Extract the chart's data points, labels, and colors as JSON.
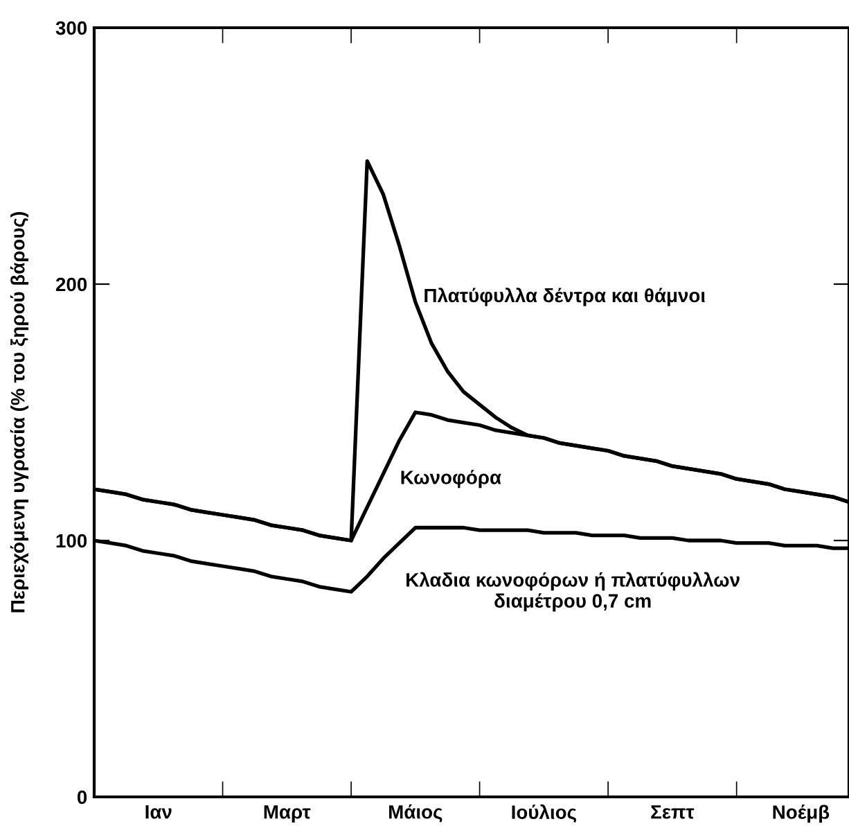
{
  "chart_data": {
    "type": "line",
    "ylabel": "Περιεχόμενη υγρασία (% του ξηρού βάρους)",
    "categories": [
      null,
      null,
      null,
      null,
      "Ιαν",
      null,
      null,
      null,
      null,
      null,
      null,
      null,
      "Μαρτ",
      null,
      null,
      null,
      null,
      null,
      null,
      null,
      "Μάιος",
      null,
      null,
      null,
      null,
      null,
      null,
      null,
      "Ιούλιος",
      null,
      null,
      null,
      null,
      null,
      null,
      null,
      "Σεπτ",
      null,
      null,
      null,
      null,
      null,
      null,
      null,
      "Νοέμβ",
      null,
      null,
      null
    ],
    "ylim": [
      0,
      300
    ],
    "yticks": [
      0,
      100,
      200,
      300
    ],
    "grid": false,
    "marker": "none",
    "line_style": "solid",
    "series": [
      {
        "name": "Πλατύφυλλα δέντρα και θάμνοι",
        "color": "#000000",
        "values": [
          120,
          119,
          118,
          116,
          115,
          114,
          112,
          111,
          110,
          109,
          108,
          106,
          105,
          104,
          102,
          101,
          100,
          248,
          235,
          215,
          193,
          177,
          166,
          158,
          153,
          148,
          144,
          141,
          140,
          138,
          137,
          136,
          135,
          133,
          132,
          131,
          129,
          128,
          127,
          126,
          124,
          123,
          122,
          120,
          119,
          118,
          117,
          115
        ]
      },
      {
        "name": "Κωνοφόρα",
        "color": "#000000",
        "values": [
          120,
          119,
          118,
          116,
          115,
          114,
          112,
          111,
          110,
          109,
          108,
          106,
          105,
          104,
          102,
          101,
          100,
          113,
          126,
          139,
          150,
          149,
          147,
          146,
          145,
          143,
          142,
          141,
          140,
          138,
          137,
          136,
          135,
          133,
          132,
          131,
          129,
          128,
          127,
          126,
          124,
          123,
          122,
          120,
          119,
          118,
          117,
          115
        ]
      },
      {
        "name": "Κλαδια κωνοφόρων ή πλατύφυλλων\nδιαμέτρου 0,7 cm",
        "color": "#000000",
        "values": [
          100,
          99,
          98,
          96,
          95,
          94,
          92,
          91,
          90,
          89,
          88,
          86,
          85,
          84,
          82,
          81,
          80,
          86,
          93,
          99,
          105,
          105,
          105,
          105,
          104,
          104,
          104,
          104,
          103,
          103,
          103,
          102,
          102,
          102,
          101,
          101,
          101,
          100,
          100,
          100,
          99,
          99,
          99,
          98,
          98,
          98,
          97,
          97
        ]
      }
    ]
  }
}
